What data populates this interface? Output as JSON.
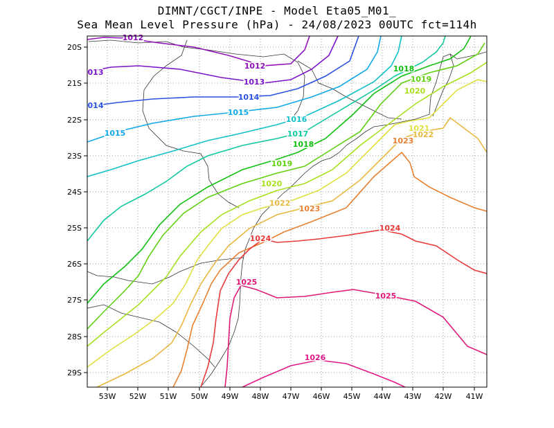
{
  "header": {
    "title_line1": "DIMNT/CGCT/INPE -  Model Eta05_M01_",
    "title_line2": "Sea Mean Level Pressure (hPa) - 24/08/2023 00UTC fct=114h"
  },
  "chart_data": {
    "type": "contour-map",
    "variable": "Sea Mean Level Pressure",
    "units": "hPa",
    "lon_range": [
      -53.6,
      -40.5
    ],
    "lat_range": [
      -29.4,
      -19.7
    ],
    "x_ticks": [
      "53W",
      "52W",
      "51W",
      "50W",
      "49W",
      "48W",
      "47W",
      "46W",
      "45W",
      "44W",
      "43W",
      "42W",
      "41W"
    ],
    "y_ticks": [
      "20S",
      "21S",
      "22S",
      "23S",
      "24S",
      "25S",
      "26S",
      "27S",
      "28S",
      "29S"
    ],
    "grid": "dotted",
    "colors": {
      "1012": "#9010b8",
      "1013": "#7a14c8",
      "1014": "#2a50e0",
      "1015": "#10a8e8",
      "1016": "#10c0c8",
      "1017": "#10c8a0",
      "1018": "#10c010",
      "1019": "#60d010",
      "1020": "#a8e020",
      "1021": "#e0e040",
      "1022": "#e8b840",
      "1023": "#e88030",
      "1024": "#e83838",
      "1025": "#e01878",
      "1026": "#e01888"
    },
    "isobar_labels": [
      {
        "text": "1012",
        "level": "1012"
      },
      {
        "text": "1012",
        "level": "1012"
      },
      {
        "text": "013",
        "level": "1013"
      },
      {
        "text": "1013",
        "level": "1013"
      },
      {
        "text": "014",
        "level": "1014"
      },
      {
        "text": "1014",
        "level": "1014"
      },
      {
        "text": "1015",
        "level": "1015"
      },
      {
        "text": "1015",
        "level": "1015"
      },
      {
        "text": "1016",
        "level": "1016"
      },
      {
        "text": "1017",
        "level": "1017"
      },
      {
        "text": "1018",
        "level": "1018"
      },
      {
        "text": "1018",
        "level": "1018"
      },
      {
        "text": "1019",
        "level": "1019"
      },
      {
        "text": "1019",
        "level": "1019"
      },
      {
        "text": "1020",
        "level": "1020"
      },
      {
        "text": "1020",
        "level": "1020"
      },
      {
        "text": "1021",
        "level": "1021"
      },
      {
        "text": "1022",
        "level": "1022"
      },
      {
        "text": "1022",
        "level": "1022"
      },
      {
        "text": "1023",
        "level": "1023"
      },
      {
        "text": "1023",
        "level": "1023"
      },
      {
        "text": "1024",
        "level": "1024"
      },
      {
        "text": "1024",
        "level": "1024"
      },
      {
        "text": "1025",
        "level": "1025"
      },
      {
        "text": "1025",
        "level": "1025"
      },
      {
        "text": "1026",
        "level": "1026"
      }
    ]
  }
}
